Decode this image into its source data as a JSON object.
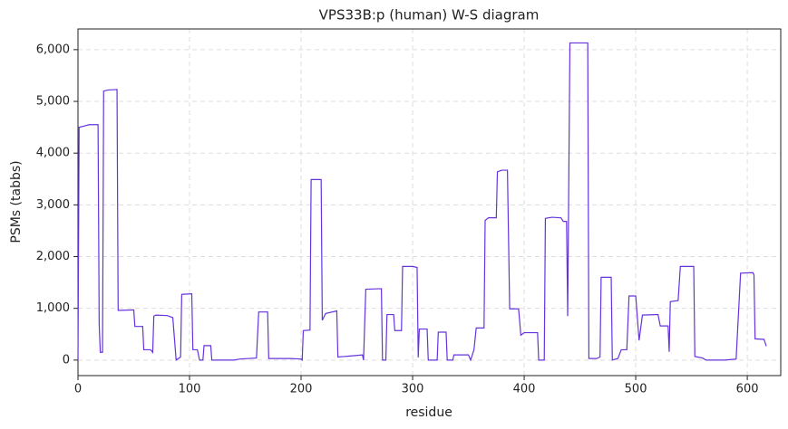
{
  "chart_data": {
    "type": "line",
    "title": "VPS33B:p (human) W-S diagram",
    "x_label": "residue",
    "y_label": "PSMs (tabbs)",
    "x": [
      0,
      1,
      5,
      10,
      18,
      19,
      20,
      22,
      23,
      27,
      35,
      36,
      50,
      51,
      58,
      59,
      65,
      67,
      68,
      70,
      80,
      85,
      88,
      92,
      93,
      102,
      103,
      107,
      109,
      112,
      113,
      119,
      120,
      140,
      145,
      160,
      162,
      170,
      171,
      190,
      200,
      201,
      202,
      208,
      209,
      218,
      219,
      222,
      232,
      233,
      245,
      255,
      256,
      258,
      272,
      273,
      276,
      277,
      283,
      284,
      290,
      291,
      300,
      304,
      305,
      306,
      313,
      314,
      322,
      323,
      330,
      331,
      336,
      337,
      350,
      352,
      355,
      357,
      364,
      365,
      368,
      375,
      376,
      380,
      385,
      387,
      395,
      397,
      400,
      412,
      413,
      418,
      419,
      425,
      433,
      435,
      438,
      439,
      441,
      457,
      458,
      465,
      468,
      469,
      478,
      479,
      484,
      487,
      492,
      494,
      500,
      503,
      506,
      520,
      522,
      529,
      530,
      531,
      538,
      540,
      552,
      553,
      560,
      563,
      580,
      590,
      594,
      605,
      606,
      607,
      615,
      617
    ],
    "values": [
      0,
      4500,
      4520,
      4550,
      4550,
      700,
      150,
      150,
      5200,
      5220,
      5230,
      960,
      970,
      650,
      650,
      200,
      200,
      150,
      850,
      870,
      860,
      820,
      0,
      60,
      1270,
      1280,
      200,
      200,
      0,
      0,
      280,
      280,
      0,
      0,
      20,
      40,
      930,
      930,
      30,
      30,
      20,
      0,
      570,
      580,
      3490,
      3490,
      770,
      900,
      950,
      60,
      80,
      100,
      0,
      1370,
      1380,
      0,
      0,
      880,
      880,
      570,
      570,
      1810,
      1810,
      1790,
      50,
      600,
      600,
      0,
      0,
      540,
      540,
      0,
      0,
      100,
      100,
      0,
      200,
      620,
      620,
      2700,
      2750,
      2750,
      3640,
      3670,
      3670,
      990,
      990,
      480,
      530,
      530,
      0,
      0,
      2740,
      2760,
      2750,
      2680,
      2680,
      850,
      6130,
      6130,
      30,
      30,
      60,
      1600,
      1600,
      0,
      30,
      200,
      200,
      1240,
      1240,
      380,
      870,
      880,
      660,
      660,
      160,
      1130,
      1150,
      1810,
      1810,
      70,
      40,
      0,
      0,
      20,
      1680,
      1690,
      1650,
      410,
      400,
      270
    ],
    "color": "#6633dd",
    "xlim": [
      0,
      630
    ],
    "xticks": [
      0,
      100,
      200,
      300,
      400,
      500,
      600
    ],
    "ylim": [
      -300,
      6400
    ],
    "yticks": [
      0,
      {
        "value": 1000,
        "label": "1,000"
      },
      {
        "value": 2000,
        "label": "2,000"
      },
      {
        "value": 3000,
        "label": "3,000"
      },
      {
        "value": 4000,
        "label": "4,000"
      },
      {
        "value": 5000,
        "label": "5,000"
      },
      {
        "value": 6000,
        "label": "6,000"
      }
    ],
    "grid": true
  }
}
